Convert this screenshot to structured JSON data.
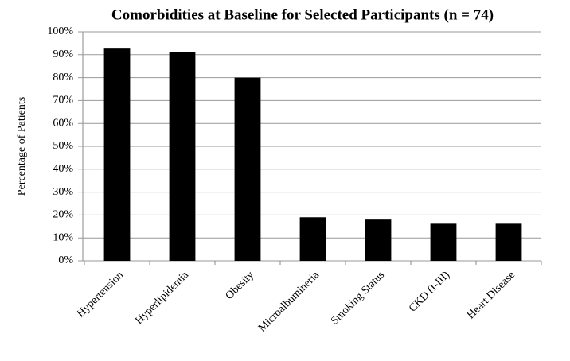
{
  "chart_data": {
    "type": "bar",
    "title": "Comorbidities at Baseline for Selected Participants (n = 74)",
    "y_label": "Percentage of Patients",
    "categories": [
      "Hypertension",
      "Hyperlipidemia",
      "Obesity",
      "Microalbumineria",
      "Smoking Status",
      "CKD (I-III)",
      "Heart Disease"
    ],
    "values": [
      93,
      91,
      80,
      19,
      18,
      16.2,
      16.2
    ],
    "color": "#000000",
    "ylim": [
      0,
      100
    ],
    "yticks": [
      {
        "value": 0,
        "label": "0%"
      },
      {
        "value": 10,
        "label": "10%"
      },
      {
        "value": 20,
        "label": "20%"
      },
      {
        "value": 30,
        "label": "30%"
      },
      {
        "value": 40,
        "label": "40%"
      },
      {
        "value": 50,
        "label": "50%"
      },
      {
        "value": 60,
        "label": "60%"
      },
      {
        "value": 70,
        "label": "70%"
      },
      {
        "value": 80,
        "label": "80%"
      },
      {
        "value": 90,
        "label": "90%"
      },
      {
        "value": 100,
        "label": "100%"
      }
    ],
    "grid": true
  }
}
